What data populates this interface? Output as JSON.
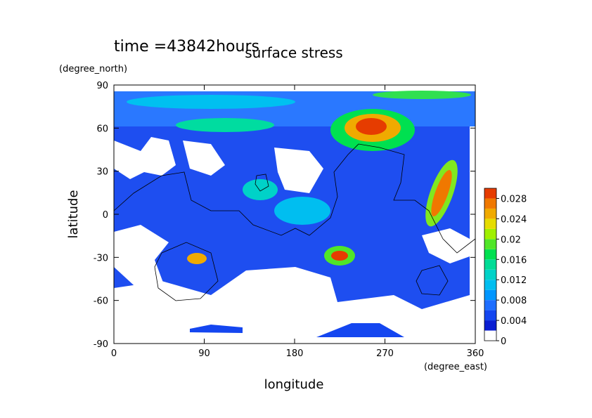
{
  "chart_data": {
    "type": "contour",
    "title": "surface stress",
    "subtitle": "time =43842hours",
    "xlabel": "longitude",
    "ylabel": "latitude",
    "xunit": "(degree_east)",
    "yunit": "(degree_north)",
    "xlim": [
      0,
      360
    ],
    "xticks": [
      0,
      90,
      180,
      270,
      360
    ],
    "ylim": [
      -90,
      90
    ],
    "yticks": [
      90,
      60,
      30,
      0,
      -30,
      -60,
      -90
    ],
    "clim": [
      0,
      0.03
    ],
    "cticks": [
      0,
      0.004,
      0.008,
      0.012,
      0.016,
      0.02,
      0.024,
      0.028
    ],
    "colorbar_colors": [
      "#ffffff",
      "#0a1ed2",
      "#1446f0",
      "#1e6eff",
      "#0096ff",
      "#00bef0",
      "#00d2c8",
      "#00dc96",
      "#00e050",
      "#50e628",
      "#a0f000",
      "#e6dc00",
      "#f0aa00",
      "#f07800",
      "#e63c00"
    ]
  }
}
